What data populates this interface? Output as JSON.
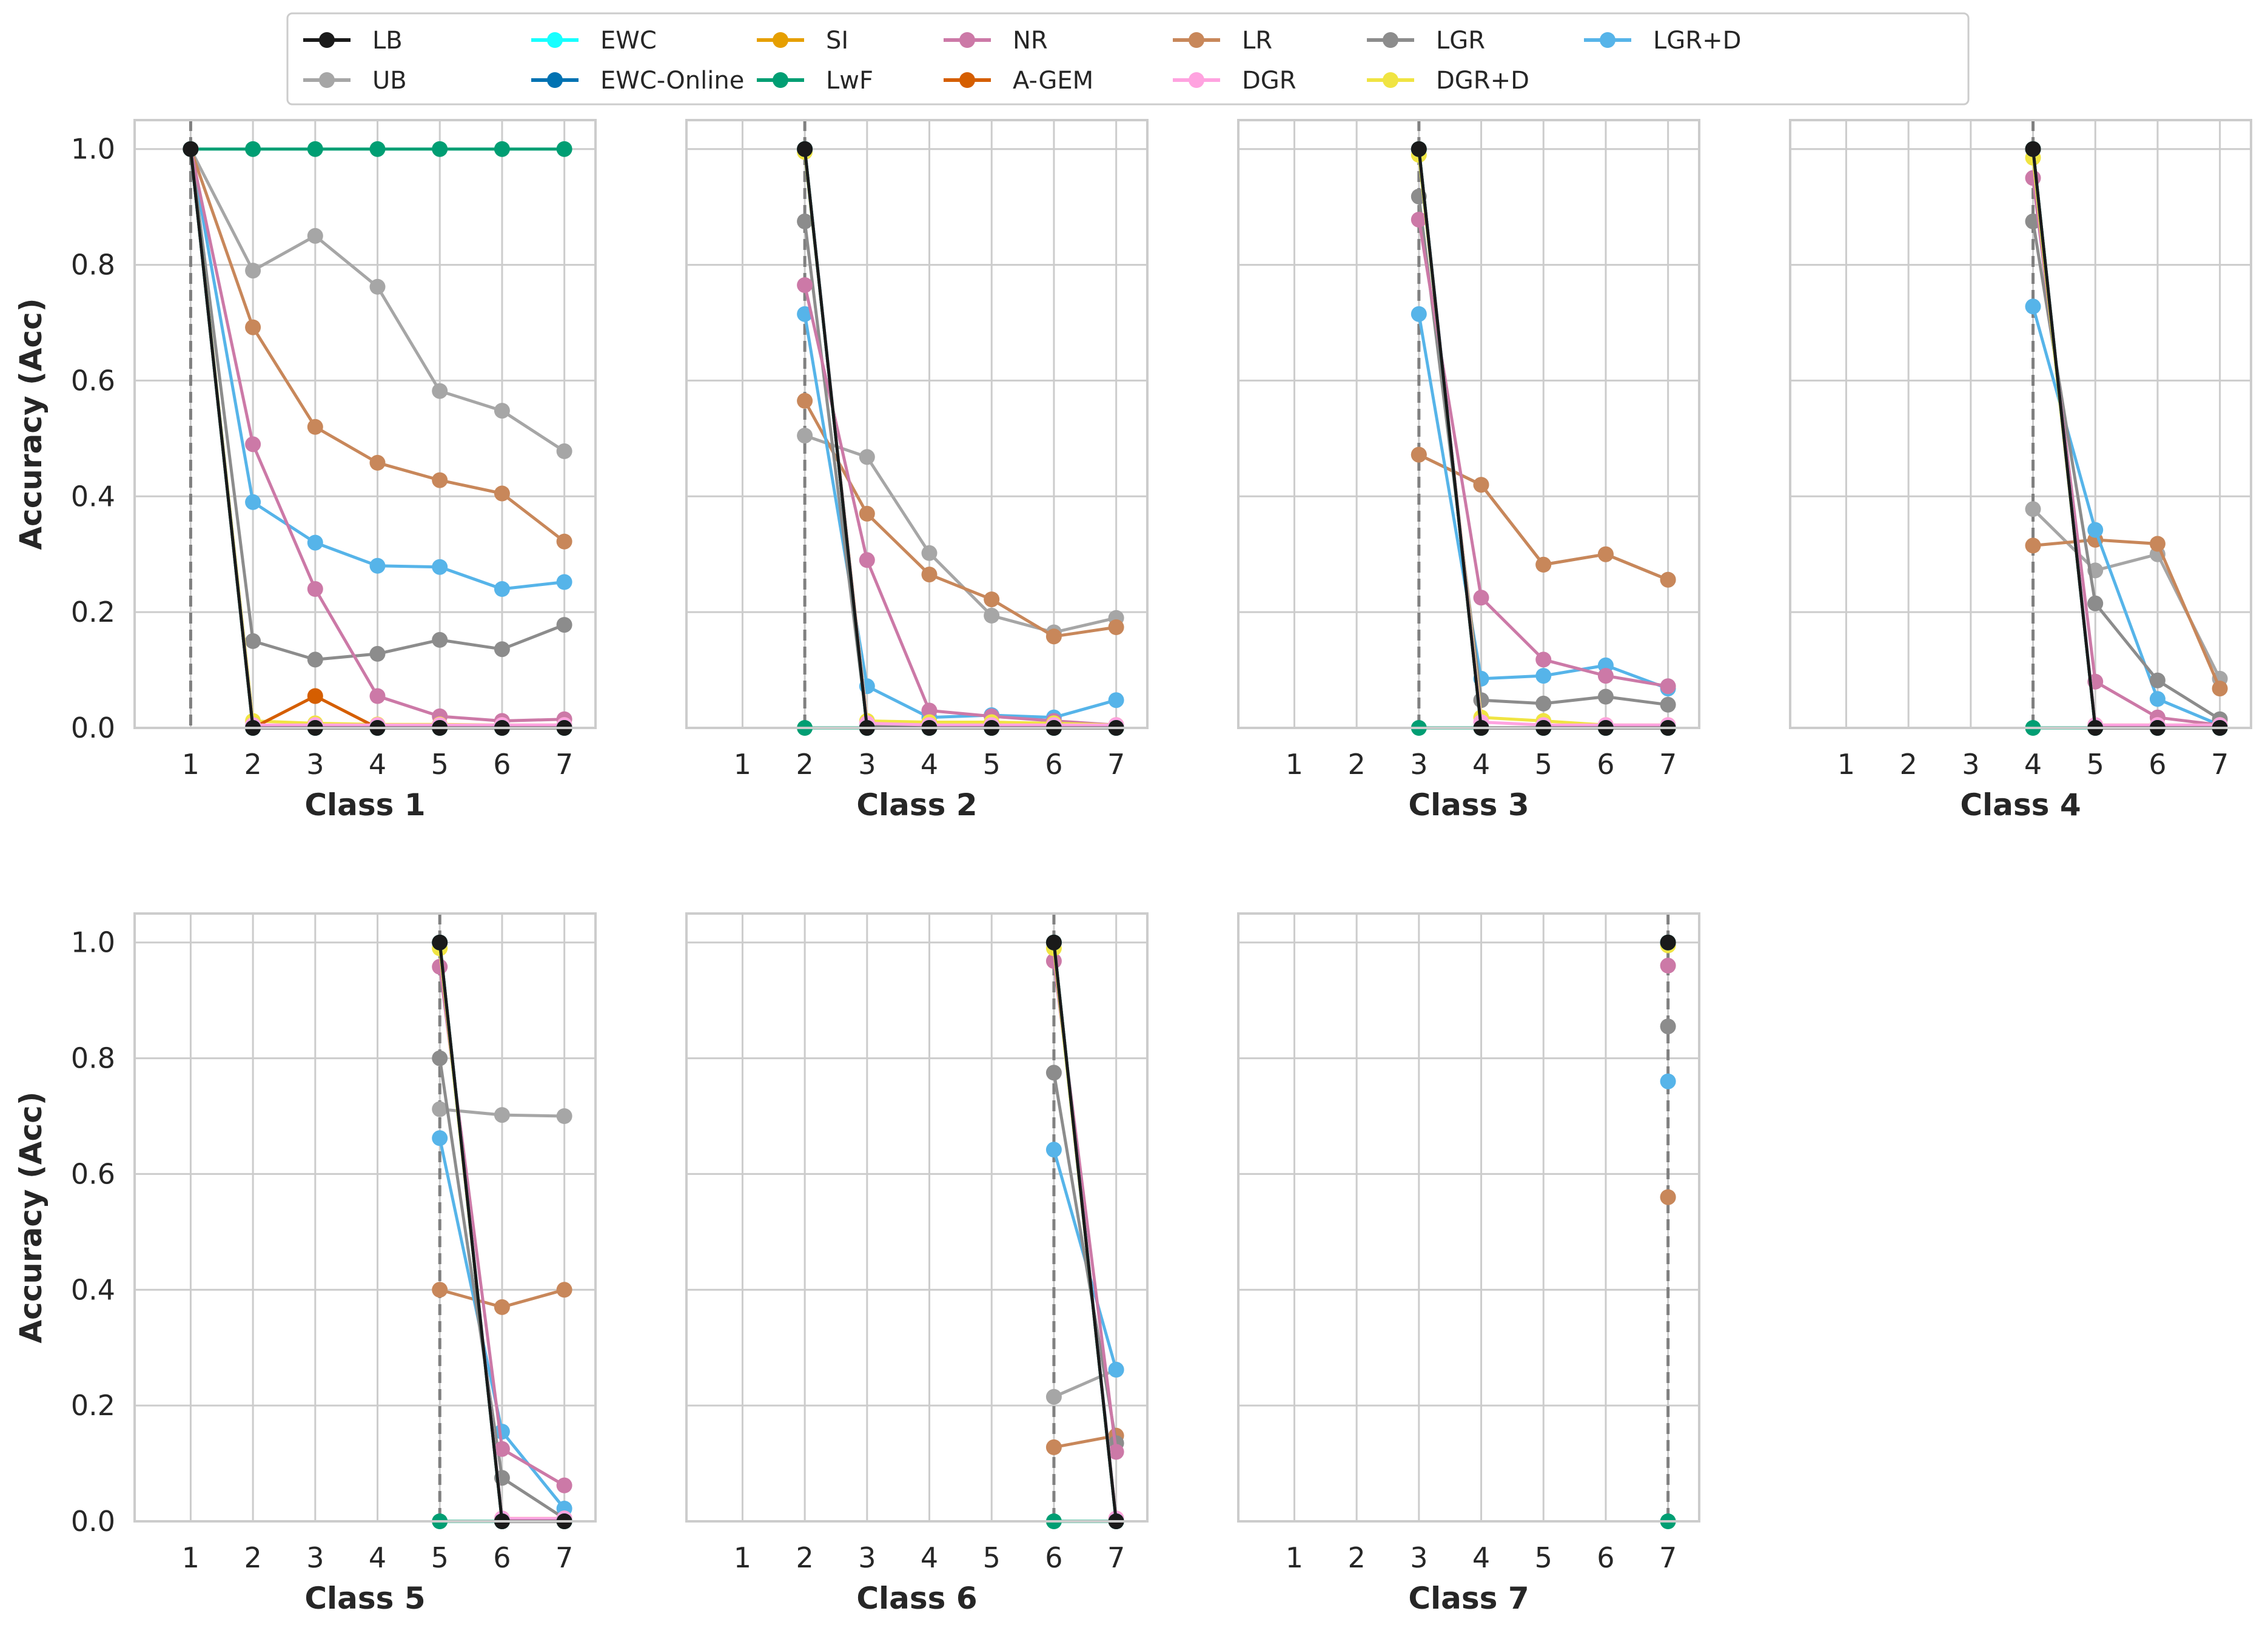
{
  "chart_data": {
    "type": "line",
    "layout": "grid of small multiples, 2 rows x 4 columns (7 panels)",
    "ylabel": "Accuracy (Acc)",
    "xticks": [
      1,
      2,
      3,
      4,
      5,
      6,
      7
    ],
    "yticks": [
      "0.0",
      "0.2",
      "0.4",
      "0.6",
      "0.8",
      "1.0"
    ],
    "ylim": [
      0,
      1.05
    ],
    "xlim": [
      0.1,
      7.5
    ],
    "grid": true,
    "legend_position": "top-center",
    "legend": [
      {
        "name": "LB",
        "color": "#1a1a1a"
      },
      {
        "name": "UB",
        "color": "#a6a6a6"
      },
      {
        "name": "EWC",
        "color": "#17ffff"
      },
      {
        "name": "EWC-Online",
        "color": "#0072b2"
      },
      {
        "name": "SI",
        "color": "#e69f00"
      },
      {
        "name": "LwF",
        "color": "#009e73"
      },
      {
        "name": "NR",
        "color": "#cc79a7"
      },
      {
        "name": "A-GEM",
        "color": "#d55e00"
      },
      {
        "name": "LR",
        "color": "#c8875a"
      },
      {
        "name": "DGR",
        "color": "#ffa3e0"
      },
      {
        "name": "LGR",
        "color": "#8c8c8c"
      },
      {
        "name": "DGR+D",
        "color": "#f0e442"
      },
      {
        "name": "LGR+D",
        "color": "#56b4e9"
      }
    ],
    "panels": [
      {
        "xlabel": "Class 1",
        "start": 1,
        "series": {
          "LB": [
            1.0,
            0.0,
            0.0,
            0.0,
            0.0,
            0.0,
            0.0
          ],
          "EWC": [
            1.0,
            0.0,
            0.0,
            0.0,
            0.0,
            0.0,
            0.0
          ],
          "EWC-Online": [
            1.0,
            0.0,
            0.0,
            0.0,
            0.0,
            0.0,
            0.0
          ],
          "SI": [
            1.0,
            0.0,
            0.0,
            0.0,
            0.0,
            0.0,
            0.0
          ],
          "DGR": [
            1.0,
            0.005,
            0.005,
            0.005,
            0.005,
            0.005,
            0.005
          ],
          "A-GEM": [
            1.0,
            0.0,
            0.055,
            0.0,
            0.0,
            0.0,
            0.0
          ],
          "DGR+D": [
            1.0,
            0.012,
            0.008,
            0.006,
            0.006,
            0.005,
            0.005
          ],
          "LwF": [
            1.0,
            1.0,
            1.0,
            1.0,
            1.0,
            1.0,
            1.0
          ],
          "NR": [
            1.0,
            0.49,
            0.24,
            0.055,
            0.02,
            0.012,
            0.015
          ],
          "LGR": [
            1.0,
            0.15,
            0.118,
            0.128,
            0.152,
            0.136,
            0.178
          ],
          "LGR+D": [
            1.0,
            0.39,
            0.32,
            0.28,
            0.278,
            0.24,
            0.252
          ],
          "LR": [
            1.0,
            0.692,
            0.52,
            0.458,
            0.428,
            0.405,
            0.322
          ],
          "UB": [
            1.0,
            0.79,
            0.85,
            0.762,
            0.582,
            0.548,
            0.478
          ]
        }
      },
      {
        "xlabel": "Class 2",
        "start": 2,
        "series": {
          "LB": [
            1.0,
            0.0,
            0.0,
            0.0,
            0.0,
            0.0
          ],
          "EWC": [
            1.0,
            0.0,
            0.0,
            0.0,
            0.0,
            0.0
          ],
          "EWC-Online": [
            1.0,
            0.0,
            0.0,
            0.0,
            0.0,
            0.0
          ],
          "SI": [
            1.0,
            0.0,
            0.0,
            0.0,
            0.0,
            0.0
          ],
          "A-GEM": [
            1.0,
            0.0,
            0.0,
            0.0,
            0.0,
            0.0
          ],
          "LwF": [
            0.0,
            0.0,
            0.0,
            0.0,
            0.0,
            0.0
          ],
          "DGR": [
            1.0,
            0.008,
            0.005,
            0.005,
            0.005,
            0.005
          ],
          "DGR+D": [
            0.995,
            0.012,
            0.01,
            0.01,
            0.008,
            0.005
          ],
          "LGR": [
            0.875,
            0.005,
            0.003,
            0.003,
            0.003,
            0.003
          ],
          "NR": [
            0.765,
            0.29,
            0.03,
            0.02,
            0.012,
            0.005
          ],
          "LGR+D": [
            0.715,
            0.072,
            0.018,
            0.022,
            0.018,
            0.048
          ],
          "LR": [
            0.565,
            0.37,
            0.265,
            0.222,
            0.158,
            0.174
          ],
          "UB": [
            0.505,
            0.468,
            0.302,
            0.194,
            0.165,
            0.19
          ]
        }
      },
      {
        "xlabel": "Class 3",
        "start": 3,
        "series": {
          "LB": [
            1.0,
            0.0,
            0.0,
            0.0,
            0.0
          ],
          "EWC": [
            1.0,
            0.0,
            0.0,
            0.0,
            0.0
          ],
          "EWC-Online": [
            1.0,
            0.0,
            0.0,
            0.0,
            0.0
          ],
          "SI": [
            1.0,
            0.0,
            0.0,
            0.0,
            0.0
          ],
          "A-GEM": [
            1.0,
            0.0,
            0.0,
            0.0,
            0.0
          ],
          "LwF": [
            0.0,
            0.0,
            0.0,
            0.0,
            0.0
          ],
          "DGR": [
            1.0,
            0.01,
            0.005,
            0.005,
            0.005
          ],
          "DGR+D": [
            0.99,
            0.018,
            0.012,
            0.005,
            0.005
          ],
          "LGR": [
            0.918,
            0.048,
            0.042,
            0.054,
            0.04
          ],
          "NR": [
            0.878,
            0.225,
            0.118,
            0.09,
            0.072
          ],
          "LGR+D": [
            0.715,
            0.085,
            0.09,
            0.108,
            0.068
          ],
          "LR": [
            0.472,
            0.42,
            0.282,
            0.3,
            0.256
          ],
          "UB": [
            0.472,
            0.42,
            0.282,
            0.3,
            0.256
          ]
        }
      },
      {
        "xlabel": "Class 4",
        "start": 4,
        "series": {
          "LB": [
            1.0,
            0.0,
            0.0,
            0.0
          ],
          "EWC": [
            1.0,
            0.0,
            0.0,
            0.0
          ],
          "EWC-Online": [
            1.0,
            0.0,
            0.0,
            0.0
          ],
          "SI": [
            1.0,
            0.0,
            0.0,
            0.0
          ],
          "A-GEM": [
            1.0,
            0.0,
            0.0,
            0.0
          ],
          "LwF": [
            0.0,
            0.0,
            0.0,
            0.0
          ],
          "DGR": [
            1.0,
            0.005,
            0.005,
            0.005
          ],
          "DGR+D": [
            0.985,
            0.005,
            0.005,
            0.005
          ],
          "NR": [
            0.95,
            0.08,
            0.018,
            0.005
          ],
          "LGR": [
            0.875,
            0.215,
            0.082,
            0.015
          ],
          "LGR+D": [
            0.728,
            0.342,
            0.05,
            0.005
          ],
          "UB": [
            0.378,
            0.272,
            0.3,
            0.085
          ],
          "LR": [
            0.315,
            0.325,
            0.318,
            0.068
          ]
        }
      },
      {
        "xlabel": "Class 5",
        "start": 5,
        "series": {
          "LB": [
            1.0,
            0.0,
            0.0
          ],
          "EWC": [
            1.0,
            0.0,
            0.0
          ],
          "EWC-Online": [
            1.0,
            0.0,
            0.0
          ],
          "SI": [
            1.0,
            0.0,
            0.0
          ],
          "A-GEM": [
            1.0,
            0.0,
            0.0
          ],
          "LwF": [
            0.0,
            0.0,
            0.0
          ],
          "DGR": [
            1.0,
            0.005,
            0.005
          ],
          "DGR+D": [
            0.99,
            0.005,
            0.005
          ],
          "NR": [
            0.958,
            0.125,
            0.062
          ],
          "LGR": [
            0.8,
            0.075,
            0.005
          ],
          "UB": [
            0.712,
            0.702,
            0.7
          ],
          "LGR+D": [
            0.662,
            0.155,
            0.022
          ],
          "LR": [
            0.4,
            0.37,
            0.4
          ]
        }
      },
      {
        "xlabel": "Class 6",
        "start": 6,
        "series": {
          "LB": [
            1.0,
            0.0
          ],
          "EWC": [
            1.0,
            0.0
          ],
          "EWC-Online": [
            1.0,
            0.0
          ],
          "SI": [
            1.0,
            0.0
          ],
          "A-GEM": [
            1.0,
            0.0
          ],
          "LwF": [
            0.0,
            0.0
          ],
          "DGR": [
            1.0,
            0.005
          ],
          "DGR+D": [
            0.99,
            0.005
          ],
          "NR": [
            0.968,
            0.12
          ],
          "LGR": [
            0.775,
            0.135
          ],
          "LGR+D": [
            0.642,
            0.262
          ],
          "UB": [
            0.215,
            0.262
          ],
          "LR": [
            0.128,
            0.148
          ]
        }
      },
      {
        "xlabel": "Class 7",
        "start": 7,
        "series": {
          "LB": [
            1.0
          ],
          "EWC": [
            1.0
          ],
          "EWC-Online": [
            1.0
          ],
          "SI": [
            1.0
          ],
          "A-GEM": [
            1.0
          ],
          "DGR": [
            1.0
          ],
          "DGR+D": [
            0.995
          ],
          "NR": [
            0.96
          ],
          "LGR": [
            0.855
          ],
          "LGR+D": [
            0.76
          ],
          "LR": [
            0.56
          ],
          "UB": [
            0.56
          ],
          "LwF": [
            0.0
          ]
        }
      }
    ]
  }
}
